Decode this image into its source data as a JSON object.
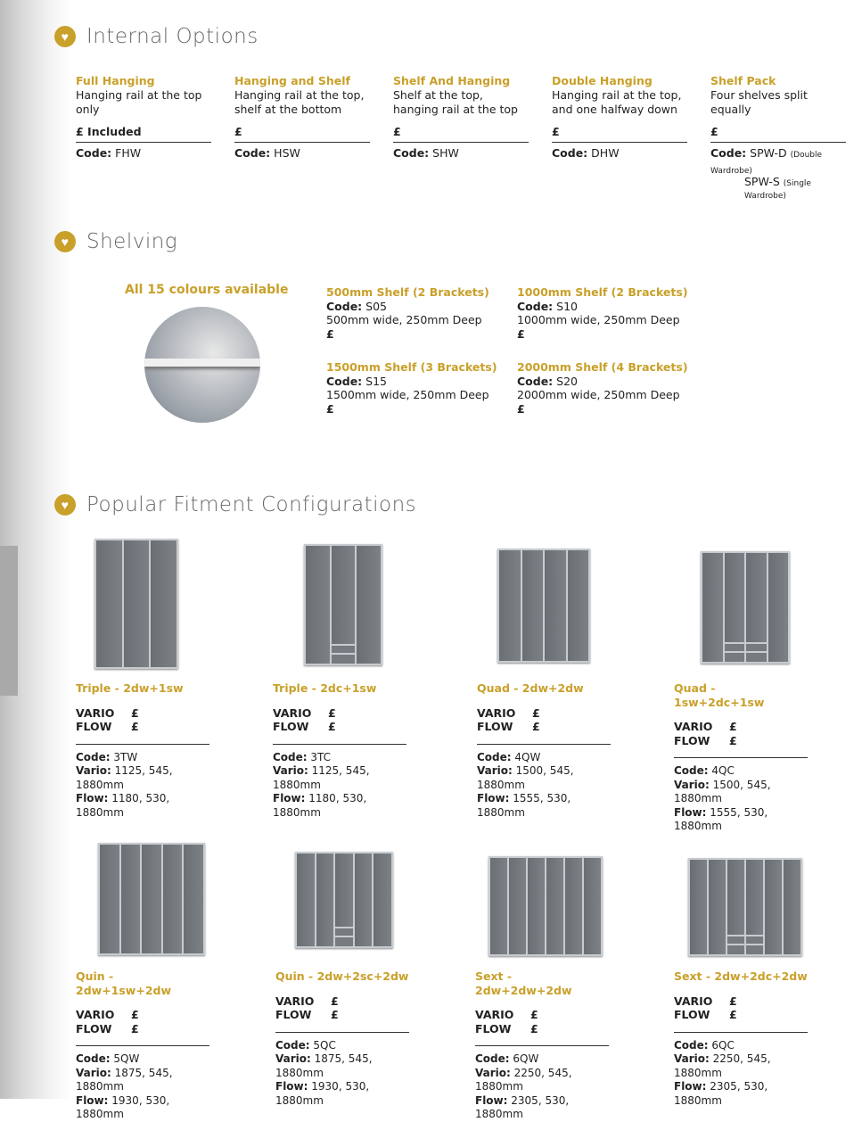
{
  "internal_options": {
    "title": "Internal Options",
    "items": [
      {
        "name": "Full Hanging",
        "desc": "Hanging rail at the top only",
        "price": "£ Included",
        "code_label": "Code:",
        "code": "FHW"
      },
      {
        "name": "Hanging and Shelf",
        "desc": "Hanging rail at the top, shelf at the bottom",
        "price": "£",
        "code_label": "Code:",
        "code": "HSW"
      },
      {
        "name": "Shelf And Hanging",
        "desc": "Shelf at the top, hanging rail at the top",
        "price": "£",
        "code_label": "Code:",
        "code": "SHW"
      },
      {
        "name": "Double Hanging",
        "desc": "Hanging rail at the top, and one halfway down",
        "price": "£",
        "code_label": "Code:",
        "code": "DHW"
      },
      {
        "name": "Shelf Pack",
        "desc": "Four shelves split equally",
        "price": "£",
        "code_label": "Code:",
        "code": "SPW-D",
        "code_note": "(Double Wardrobe)",
        "code2": "SPW-S",
        "code2_note": "(Single Wardrobe)"
      }
    ]
  },
  "shelving": {
    "title": "Shelving",
    "colours_note": "All 15 colours available",
    "items": [
      {
        "name": "500mm Shelf (2 Brackets)",
        "code_label": "Code:",
        "code": "S05",
        "desc": "500mm wide, 250mm Deep",
        "price": "£"
      },
      {
        "name": "1000mm Shelf (2 Brackets)",
        "code_label": "Code:",
        "code": "S10",
        "desc": "1000mm wide, 250mm Deep",
        "price": "£"
      },
      {
        "name": "1500mm Shelf (3 Brackets)",
        "code_label": "Code:",
        "code": "S15",
        "desc": "1500mm wide, 250mm Deep",
        "price": "£"
      },
      {
        "name": "2000mm Shelf (4 Brackets)",
        "code_label": "Code:",
        "code": "S20",
        "desc": "2000mm wide, 250mm Deep",
        "price": "£"
      }
    ]
  },
  "configs": {
    "title": "Popular Fitment Configurations",
    "vario_label": "VARIO",
    "flow_label": "FLOW",
    "code_label": "Code:",
    "vario_dim_label": "Vario:",
    "flow_dim_label": "Flow:",
    "items": [
      {
        "name": "Triple - 2dw+1sw",
        "vario_price": "£",
        "flow_price": "£",
        "code": "3TW",
        "vario": "1125, 545, 1880mm",
        "flow": "1180, 530, 1880mm"
      },
      {
        "name": "Triple - 2dc+1sw",
        "vario_price": "£",
        "flow_price": "£",
        "code": "3TC",
        "vario": "1125, 545, 1880mm",
        "flow": "1180, 530, 1880mm"
      },
      {
        "name": "Quad - 2dw+2dw",
        "vario_price": "£",
        "flow_price": "£",
        "code": "4QW",
        "vario": "1500, 545, 1880mm",
        "flow": "1555, 530, 1880mm"
      },
      {
        "name": "Quad - 1sw+2dc+1sw",
        "vario_price": "£",
        "flow_price": "£",
        "code": "4QC",
        "vario": "1500, 545, 1880mm",
        "flow": "1555, 530, 1880mm"
      },
      {
        "name": "Quin - 2dw+1sw+2dw",
        "vario_price": "£",
        "flow_price": "£",
        "code": "5QW",
        "vario": "1875, 545, 1880mm",
        "flow": "1930, 530, 1880mm"
      },
      {
        "name": "Quin - 2dw+2sc+2dw",
        "vario_price": "£",
        "flow_price": "£",
        "code": "5QC",
        "vario": "1875, 545, 1880mm",
        "flow": "1930, 530, 1880mm"
      },
      {
        "name": "Sext - 2dw+2dw+2dw",
        "vario_price": "£",
        "flow_price": "£",
        "code": "6QW",
        "vario": "2250, 545, 1880mm",
        "flow": "2305, 530, 1880mm"
      },
      {
        "name": "Sext - 2dw+2dc+2dw",
        "vario_price": "£",
        "flow_price": "£",
        "code": "6QC",
        "vario": "2250, 545, 1880mm",
        "flow": "2305, 530, 1880mm"
      }
    ]
  },
  "colors": {
    "accent": "#c9a02a"
  }
}
